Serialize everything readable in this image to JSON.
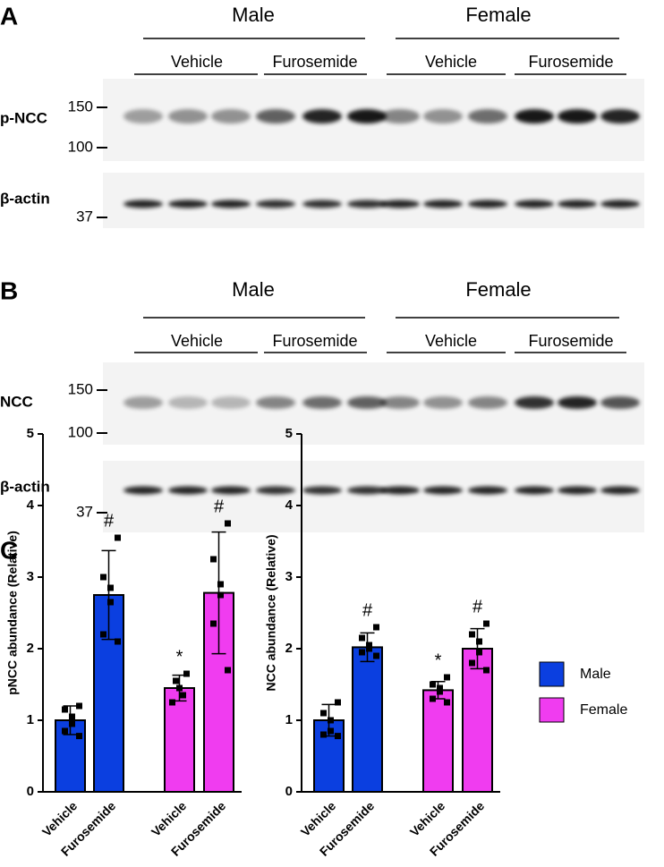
{
  "panels": [
    {
      "letter": "A",
      "groups": [
        "Male",
        "Female"
      ],
      "treatments": [
        "Vehicle",
        "Furosemide",
        "Vehicle",
        "Furosemide"
      ],
      "blots": [
        {
          "label": "p-NCC",
          "markers": [
            "150",
            "100"
          ]
        },
        {
          "label": "β-actin",
          "markers": [
            "37"
          ]
        }
      ]
    },
    {
      "letter": "B",
      "groups": [
        "Male",
        "Female"
      ],
      "treatments": [
        "Vehicle",
        "Furosemide",
        "Vehicle",
        "Furosemide"
      ],
      "blots": [
        {
          "label": "NCC",
          "markers": [
            "150",
            "100"
          ]
        },
        {
          "label": "β-actin",
          "markers": [
            "37"
          ]
        }
      ]
    }
  ],
  "chart_letter": "C",
  "legend": [
    {
      "name": "Male",
      "color": "#0b3fe0"
    },
    {
      "name": "Female",
      "color": "#f03cf0"
    }
  ],
  "chart_data": [
    {
      "type": "bar",
      "ylabel": "pNCC abundance (Relative)",
      "categories": [
        "Vehicle",
        "Furosemide",
        "Vehicle",
        "Furosemide"
      ],
      "colors": [
        "#0b3fe0",
        "#0b3fe0",
        "#f03cf0",
        "#f03cf0"
      ],
      "values": [
        1.0,
        2.75,
        1.45,
        2.78
      ],
      "errors": [
        0.2,
        0.62,
        0.18,
        0.85
      ],
      "points": [
        [
          1.2,
          1.15,
          1.05,
          0.95,
          0.85,
          0.78
        ],
        [
          3.55,
          3.0,
          2.85,
          2.65,
          2.2,
          2.1
        ],
        [
          1.65,
          1.55,
          1.45,
          1.35,
          1.25
        ],
        [
          3.75,
          3.25,
          2.9,
          2.75,
          2.35,
          1.7
        ]
      ],
      "annotations": [
        {
          "index": 1,
          "text": "#"
        },
        {
          "index": 2,
          "text": "*"
        },
        {
          "index": 3,
          "text": "#"
        }
      ],
      "ylim": [
        0,
        5
      ],
      "yticks": [
        0,
        1,
        2,
        3,
        4,
        5
      ]
    },
    {
      "type": "bar",
      "ylabel": "NCC abundance (Relative)",
      "categories": [
        "Vehicle",
        "Furosemide",
        "Vehicle",
        "Furosemide"
      ],
      "colors": [
        "#0b3fe0",
        "#0b3fe0",
        "#f03cf0",
        "#f03cf0"
      ],
      "values": [
        1.0,
        2.02,
        1.42,
        2.0
      ],
      "errors": [
        0.22,
        0.2,
        0.12,
        0.28
      ],
      "points": [
        [
          1.25,
          1.1,
          1.0,
          0.85,
          0.8,
          0.78
        ],
        [
          2.3,
          2.15,
          2.05,
          2.0,
          1.95,
          1.9
        ],
        [
          1.6,
          1.5,
          1.45,
          1.4,
          1.3,
          1.25
        ],
        [
          2.35,
          2.2,
          2.1,
          1.95,
          1.8,
          1.7
        ]
      ],
      "annotations": [
        {
          "index": 1,
          "text": "#"
        },
        {
          "index": 2,
          "text": "*"
        },
        {
          "index": 3,
          "text": "#"
        }
      ],
      "ylim": [
        0,
        5
      ],
      "yticks": [
        0,
        1,
        2,
        3,
        4,
        5
      ]
    }
  ]
}
